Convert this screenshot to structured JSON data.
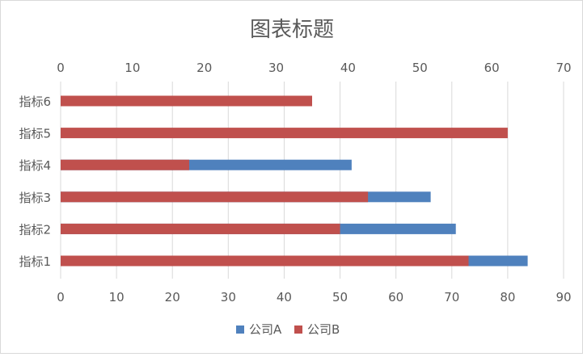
{
  "chart_data": {
    "type": "bar",
    "orientation": "horizontal",
    "title": "图表标题",
    "categories": [
      "指标1",
      "指标2",
      "指标3",
      "指标4",
      "指标5",
      "指标6"
    ],
    "series": [
      {
        "name": "公司A",
        "axis": "top",
        "color": "#4f81bd",
        "values": [
          65,
          55,
          51.5,
          40.5,
          null,
          null
        ]
      },
      {
        "name": "公司B",
        "axis": "bottom",
        "color": "#c0504d",
        "values": [
          73,
          50,
          55,
          23,
          80,
          45
        ]
      }
    ],
    "axes": {
      "top": {
        "min": 0,
        "max": 70,
        "ticks": [
          "0",
          "10",
          "20",
          "30",
          "40",
          "50",
          "60",
          "70"
        ]
      },
      "bottom": {
        "min": 0,
        "max": 90,
        "ticks": [
          "0",
          "10",
          "20",
          "30",
          "40",
          "50",
          "60",
          "70",
          "80",
          "90"
        ]
      }
    },
    "grid": true,
    "legend": "bottom"
  }
}
